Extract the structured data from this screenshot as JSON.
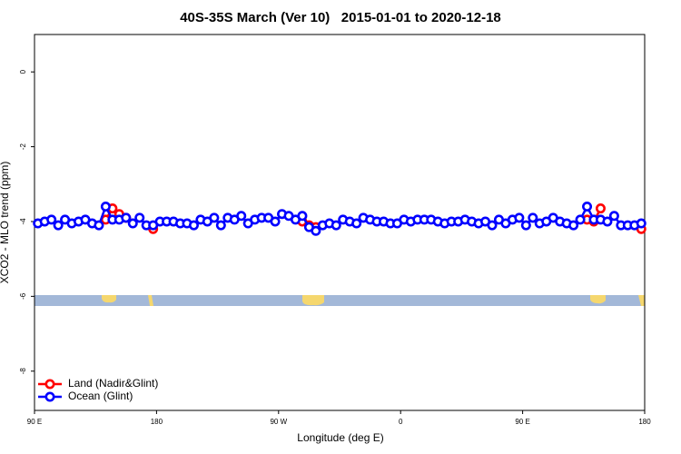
{
  "chart_data": {
    "type": "line",
    "title": "40S-35S March (Ver 10)   2015-01-01 to 2020-12-18",
    "x_label": "Longitude (deg E)",
    "y_label": "XCO2 - MLO trend (ppm)",
    "xlim": [
      90,
      540
    ],
    "ylim": [
      -9.05,
      1
    ],
    "xticks": [
      {
        "value": 90,
        "label": "90 E"
      },
      {
        "value": 180,
        "label": "180"
      },
      {
        "value": 270,
        "label": "90 W"
      },
      {
        "value": 360,
        "label": "0"
      },
      {
        "value": 450,
        "label": "90 E"
      },
      {
        "value": 540,
        "label": "180"
      }
    ],
    "yticks": [
      0,
      -2,
      -4,
      -6,
      -8
    ],
    "legend": "bottom-left",
    "series": [
      {
        "name": "Land (Nadir&Glint)",
        "color": "#ff0000",
        "x": [
          142.5,
          147.5,
          152.5,
          157.5,
          null,
          177.5,
          null,
          287.5,
          292.5,
          297.5,
          null,
          497.5,
          502.5,
          507.5,
          null,
          537.5
        ],
        "values": [
          -3.95,
          -3.65,
          -3.8,
          -3.9,
          null,
          -4.2,
          null,
          -4.0,
          -4.1,
          -4.15,
          null,
          -3.95,
          -4.0,
          -3.65,
          null,
          -4.2
        ]
      },
      {
        "name": "Ocean (Glint)",
        "color": "#0000ff",
        "x": [
          92.5,
          97.5,
          102.5,
          107.5,
          112.5,
          117.5,
          122.5,
          127.5,
          132.5,
          137.5,
          142.5,
          147.5,
          152.5,
          157.5,
          162.5,
          167.5,
          172.5,
          177.5,
          182.5,
          187.5,
          192.5,
          197.5,
          202.5,
          207.5,
          212.5,
          217.5,
          222.5,
          227.5,
          232.5,
          237.5,
          242.5,
          247.5,
          252.5,
          257.5,
          262.5,
          267.5,
          272.5,
          277.5,
          282.5,
          287.5,
          292.5,
          297.5,
          302.5,
          307.5,
          312.5,
          317.5,
          322.5,
          327.5,
          332.5,
          337.5,
          342.5,
          347.5,
          352.5,
          357.5,
          362.5,
          367.5,
          372.5,
          377.5,
          382.5,
          387.5,
          392.5,
          397.5,
          402.5,
          407.5,
          412.5,
          417.5,
          422.5,
          427.5,
          432.5,
          437.5,
          442.5,
          447.5,
          452.5,
          457.5,
          462.5,
          467.5,
          472.5,
          477.5,
          482.5,
          487.5,
          492.5,
          497.5,
          502.5,
          507.5,
          512.5,
          517.5,
          522.5,
          527.5,
          532.5,
          537.5
        ],
        "values": [
          -4.05,
          -4.0,
          -3.95,
          -4.1,
          -3.95,
          -4.05,
          -4.0,
          -3.95,
          -4.05,
          -4.1,
          -3.6,
          -3.95,
          -3.95,
          -3.9,
          -4.05,
          -3.9,
          -4.1,
          -4.1,
          -4.0,
          -4.0,
          -4.0,
          -4.05,
          -4.05,
          -4.1,
          -3.95,
          -4.0,
          -3.9,
          -4.1,
          -3.9,
          -3.95,
          -3.85,
          -4.05,
          -3.95,
          -3.9,
          -3.9,
          -4.0,
          -3.8,
          -3.85,
          -3.95,
          -3.85,
          -4.15,
          -4.25,
          -4.1,
          -4.05,
          -4.1,
          -3.95,
          -4.0,
          -4.05,
          -3.9,
          -3.95,
          -4.0,
          -4.0,
          -4.05,
          -4.05,
          -3.95,
          -4.0,
          -3.95,
          -3.95,
          -3.95,
          -4.0,
          -4.05,
          -4.0,
          -4.0,
          -3.95,
          -4.0,
          -4.05,
          -4.0,
          -4.1,
          -3.95,
          -4.05,
          -3.95,
          -3.9,
          -4.1,
          -3.9,
          -4.05,
          -4.0,
          -3.9,
          -4.0,
          -4.05,
          -4.1,
          -3.95,
          -3.6,
          -3.95,
          -3.95,
          -4.0,
          -3.85,
          -4.1,
          -4.1,
          -4.1,
          -4.05
        ]
      }
    ]
  }
}
